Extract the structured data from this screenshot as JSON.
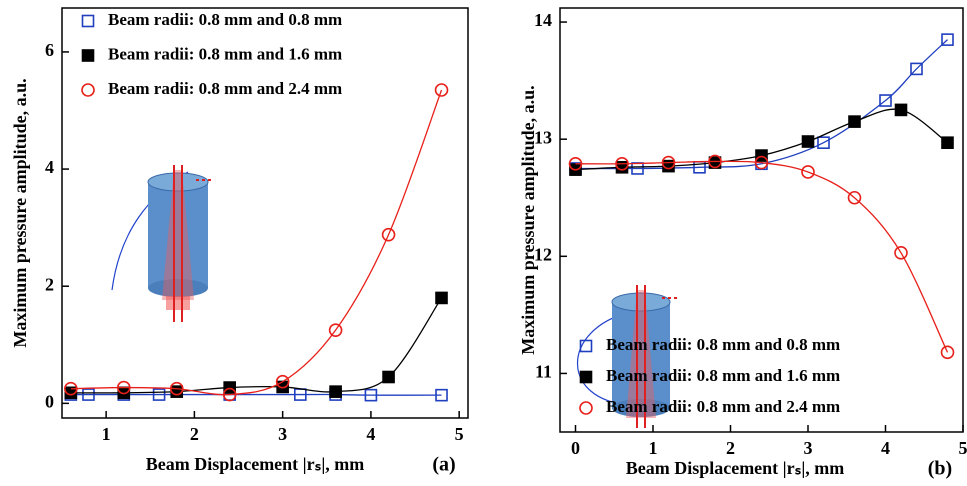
{
  "chart_data": [
    {
      "type": "line",
      "panel_label": "(a)",
      "x_label": "Beam Displacement |rₛ|, mm",
      "y_label": "Maximum pressure amplitude, a.u.",
      "xlim": [
        0.5,
        5.1
      ],
      "ylim": [
        -0.25,
        6.75
      ],
      "xticks": [
        1,
        2,
        3,
        4,
        5
      ],
      "yticks": [
        0,
        2,
        4,
        6
      ],
      "legend": "upper left",
      "series": [
        {
          "name": "Beam radii: 0.8 mm and 0.8 mm",
          "color": "#1f3fbf",
          "marker": "square",
          "filled": false,
          "x": [
            0.6,
            0.8,
            1.2,
            1.6,
            2.4,
            3.2,
            3.6,
            4.0,
            4.8
          ],
          "values": [
            0.15,
            0.15,
            0.15,
            0.15,
            0.15,
            0.15,
            0.15,
            0.14,
            0.14
          ]
        },
        {
          "name": "Beam radii: 0.8 mm and 1.6 mm",
          "color": "#000000",
          "marker": "square",
          "filled": true,
          "x": [
            0.6,
            1.2,
            1.8,
            2.4,
            3.0,
            3.6,
            4.2,
            4.8
          ],
          "values": [
            0.18,
            0.18,
            0.2,
            0.27,
            0.28,
            0.2,
            0.45,
            1.8
          ]
        },
        {
          "name": "Beam radii: 0.8 mm and 2.4 mm",
          "color": "#e8201a",
          "marker": "circle",
          "filled": false,
          "x": [
            0.6,
            1.2,
            1.8,
            2.4,
            3.0,
            3.6,
            4.2,
            4.8
          ],
          "values": [
            0.25,
            0.27,
            0.25,
            0.15,
            0.37,
            1.25,
            2.88,
            5.35
          ]
        }
      ]
    },
    {
      "type": "line",
      "panel_label": "(b)",
      "x_label": "Beam Displacement |rₛ|, mm",
      "y_label": "Maximum pressure amplitude, a.u.",
      "xlim": [
        -0.2,
        5.0
      ],
      "ylim": [
        10.5,
        14.12
      ],
      "xticks": [
        0,
        1,
        2,
        3,
        4,
        5
      ],
      "yticks": [
        11,
        12,
        13,
        14
      ],
      "legend": "lower left",
      "series": [
        {
          "name": "Beam radii: 0.8 mm and 0.8 mm",
          "color": "#1f3fbf",
          "marker": "square",
          "filled": false,
          "x": [
            0,
            0.8,
            1.6,
            2.4,
            3.2,
            4.0,
            4.4,
            4.8
          ],
          "values": [
            12.75,
            12.75,
            12.76,
            12.79,
            12.97,
            13.33,
            13.6,
            13.85
          ]
        },
        {
          "name": "Beam radii: 0.8 mm and 1.6 mm",
          "color": "#000000",
          "marker": "square",
          "filled": true,
          "x": [
            0,
            0.6,
            1.2,
            1.8,
            2.4,
            3.0,
            3.6,
            4.2,
            4.8
          ],
          "values": [
            12.74,
            12.76,
            12.77,
            12.8,
            12.86,
            12.98,
            13.15,
            13.25,
            12.97
          ]
        },
        {
          "name": "Beam radii: 0.8 mm and 2.4 mm",
          "color": "#e8201a",
          "marker": "circle",
          "filled": false,
          "x": [
            0,
            0.6,
            1.2,
            1.8,
            2.4,
            3.0,
            3.6,
            4.2,
            4.8
          ],
          "values": [
            12.79,
            12.79,
            12.8,
            12.81,
            12.8,
            12.72,
            12.5,
            12.03,
            11.18
          ]
        }
      ]
    }
  ]
}
